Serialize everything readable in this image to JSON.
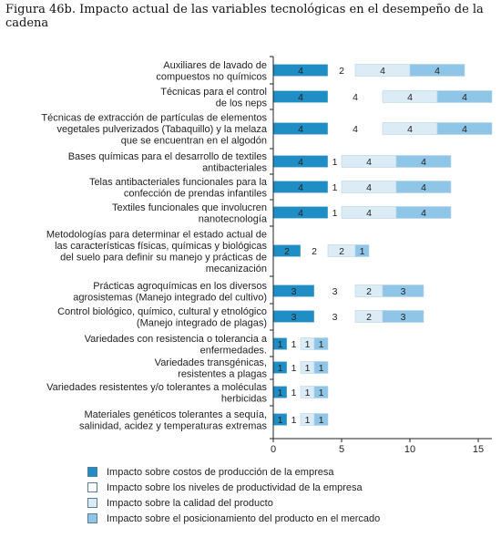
{
  "figure_title": "Figura 46b. Impacto actual de las variables tecnológicas en el desempeño de la cadena",
  "chart_data": {
    "type": "bar",
    "orientation": "horizontal",
    "stacked": true,
    "categories": [
      [
        "Auxiliares de lavado de",
        "compuestos no químicos"
      ],
      [
        "Técnicas para el control",
        "de los neps"
      ],
      [
        "Técnicas de extracción de partículas de elementos",
        "vegetales pulverizados (Tabaquillo) y la melaza",
        "que se encuentran en el algodón"
      ],
      [
        "Bases químicas para el desarrollo de textiles",
        "antibacteriales"
      ],
      [
        "Telas antibacteriales funcionales para la",
        "confección de prendas infantiles"
      ],
      [
        "Textiles funcionales que involucren",
        "nanotecnología"
      ],
      [
        "Metodologías para determinar el estado actual de",
        "las características físicas, químicas y biológicas",
        "del suelo para definir su manejo y prácticas de",
        "mecanización"
      ],
      [
        "Prácticas agroquímicas en los diversos",
        "agrosistemas (Manejo integrado del cultivo)"
      ],
      [
        "Control biológico, químico, cultural y etnológico",
        "(Manejo integrado de plagas)"
      ],
      [
        "Variedades con resistencia o tolerancia a",
        "enfermedades."
      ],
      [
        "Variedades transgénicas,",
        "resistentes a plagas"
      ],
      [
        "Variedades resistentes y/o tolerantes a moléculas",
        "herbicidas"
      ],
      [
        "Materiales genéticos tolerantes a sequía,",
        "salinidad, acidez y temperaturas extremas"
      ]
    ],
    "series": [
      {
        "name": "Impacto sobre costos de producción de la empresa",
        "color": "#1f8ec4",
        "values": [
          4,
          4,
          4,
          4,
          4,
          4,
          2,
          3,
          3,
          1,
          1,
          1,
          1
        ]
      },
      {
        "name": "Impacto sobre los niveles de productividad de la empresa",
        "color": "#ffffff",
        "values": [
          2,
          4,
          4,
          1,
          1,
          1,
          2,
          3,
          3,
          1,
          1,
          1,
          1
        ]
      },
      {
        "name": "Impacto sobre la calidad del producto",
        "color": "#dcecf7",
        "values": [
          4,
          4,
          4,
          4,
          4,
          4,
          2,
          2,
          2,
          1,
          1,
          1,
          1
        ]
      },
      {
        "name": "Impacto sobre el posicionamiento del producto en el mercado",
        "color": "#8fc6e8",
        "values": [
          4,
          4,
          4,
          4,
          4,
          4,
          1,
          3,
          3,
          1,
          1,
          1,
          1
        ]
      }
    ],
    "xlim": [
      0,
      16
    ],
    "xticks": [
      0,
      5,
      10,
      15
    ],
    "legend_position": "bottom",
    "grid": false
  }
}
